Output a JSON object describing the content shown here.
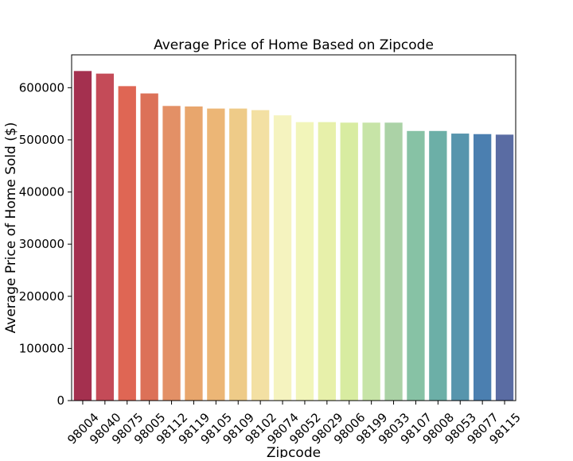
{
  "chart_data": {
    "type": "bar",
    "title": "Average Price of Home Based on Zipcode",
    "xlabel": "Zipcode",
    "ylabel": "Average Price of Home Sold ($)",
    "categories": [
      "98004",
      "98040",
      "98075",
      "98005",
      "98112",
      "98119",
      "98105",
      "98109",
      "98102",
      "98074",
      "98052",
      "98029",
      "98006",
      "98199",
      "98033",
      "98107",
      "98008",
      "98053",
      "98077",
      "98115"
    ],
    "values": [
      632000,
      627000,
      603000,
      589000,
      565000,
      564000,
      560000,
      560000,
      557000,
      547000,
      534000,
      534000,
      533000,
      533000,
      533000,
      517000,
      517000,
      512000,
      511000,
      510000
    ],
    "colors": [
      "#a4304f",
      "#c44b58",
      "#df6654",
      "#dc7158",
      "#e39066",
      "#e8a66d",
      "#ecb676",
      "#eecb88",
      "#f3e0a3",
      "#f5f3bf",
      "#f2f5ba",
      "#e7f0aa",
      "#d8eca1",
      "#c7e4a7",
      "#abd2a6",
      "#87c2a5",
      "#6cafa7",
      "#5795ad",
      "#4b7fb0",
      "#5a6ca3"
    ],
    "ylim": [
      0,
      663000
    ],
    "yticks": [
      0,
      100000,
      200000,
      300000,
      400000,
      500000,
      600000
    ],
    "ytick_labels": [
      "0",
      "100000",
      "200000",
      "300000",
      "400000",
      "500000",
      "600000"
    ],
    "grid": false,
    "legend": "none"
  }
}
